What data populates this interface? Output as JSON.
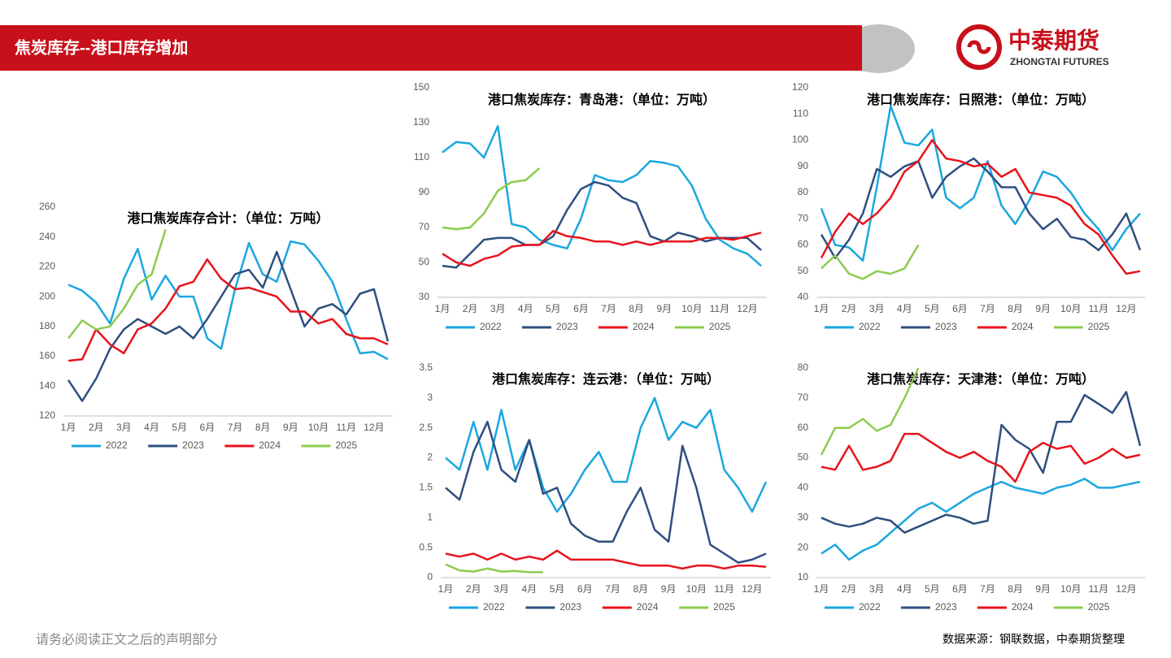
{
  "header": {
    "title": "焦炭库存--港口库存增加"
  },
  "logo": {
    "name": "中泰期货",
    "sub": "ZHONGTAI FUTURES"
  },
  "footer": {
    "disclaimer": "请务必阅读正文之后的声明部分",
    "source": "数据来源：钢联数据，中泰期货整理"
  },
  "chart_data": [
    {
      "type": "line",
      "title": "港口焦炭库存合计：（单位：万吨）",
      "legend": "bottom",
      "categories": [
        "1月",
        null,
        "2月",
        null,
        "3月",
        null,
        "4月",
        null,
        "5月",
        null,
        "6月",
        null,
        "7月",
        null,
        "8月",
        null,
        "9月",
        null,
        "10月",
        null,
        "11月",
        null,
        "12月",
        null
      ],
      "ylim": [
        120,
        260
      ],
      "yticks": [
        120,
        140,
        160,
        180,
        200,
        220,
        240,
        260
      ],
      "series": [
        {
          "name": "2022",
          "color": "#1aa7e0",
          "values": [
            208,
            204,
            196,
            182,
            212,
            232,
            198,
            214,
            200,
            200,
            172,
            165,
            205,
            236,
            215,
            210,
            237,
            235,
            224,
            210,
            185,
            162,
            163,
            158
          ]
        },
        {
          "name": "2023",
          "color": "#2e4f7f",
          "values": [
            144,
            130,
            145,
            165,
            178,
            185,
            180,
            175,
            180,
            172,
            185,
            200,
            215,
            218,
            206,
            230,
            205,
            180,
            192,
            195,
            188,
            202,
            205,
            170
          ]
        },
        {
          "name": "2024",
          "color": "#e8131c",
          "values": [
            157,
            158,
            178,
            168,
            162,
            178,
            182,
            192,
            207,
            210,
            225,
            212,
            205,
            206,
            203,
            200,
            190,
            190,
            182,
            185,
            175,
            172,
            172,
            168
          ]
        },
        {
          "name": "2025",
          "color": "#8ccc4e",
          "values": [
            172,
            184,
            178,
            180,
            192,
            208,
            215,
            245,
            null,
            null,
            null,
            null,
            null,
            null,
            null,
            null,
            null,
            null,
            null,
            null,
            null,
            null,
            null,
            null
          ]
        }
      ]
    },
    {
      "type": "line",
      "title": "港口焦炭库存：青岛港：（单位：万吨）",
      "legend": "bottom",
      "categories": [
        "1月",
        null,
        "2月",
        null,
        "3月",
        null,
        "4月",
        null,
        "5月",
        null,
        "6月",
        null,
        "7月",
        null,
        "8月",
        null,
        "9月",
        null,
        "10月",
        null,
        "11月",
        null,
        "12月",
        null
      ],
      "ylim": [
        30,
        150
      ],
      "yticks": [
        30,
        50,
        70,
        90,
        110,
        130,
        150
      ],
      "series": [
        {
          "name": "2022",
          "color": "#1aa7e0",
          "values": [
            113,
            119,
            118,
            110,
            128,
            72,
            70,
            63,
            60,
            58,
            75,
            100,
            97,
            96,
            100,
            108,
            107,
            105,
            94,
            75,
            63,
            58,
            55,
            48
          ]
        },
        {
          "name": "2023",
          "color": "#2e4f7f",
          "values": [
            48,
            47,
            55,
            63,
            64,
            64,
            60,
            60,
            65,
            80,
            92,
            96,
            94,
            87,
            84,
            65,
            62,
            67,
            65,
            62,
            64,
            64,
            64,
            57
          ]
        },
        {
          "name": "2024",
          "color": "#e8131c",
          "values": [
            55,
            50,
            48,
            52,
            54,
            59,
            60,
            60,
            68,
            65,
            64,
            62,
            62,
            60,
            62,
            60,
            62,
            62,
            62,
            64,
            64,
            63,
            65,
            67
          ]
        },
        {
          "name": "2025",
          "color": "#8ccc4e",
          "values": [
            70,
            69,
            70,
            78,
            91,
            96,
            97,
            104,
            null,
            null,
            null,
            null,
            null,
            null,
            null,
            null,
            null,
            null,
            null,
            null,
            null,
            null,
            null,
            null
          ]
        }
      ]
    },
    {
      "type": "line",
      "title": "港口焦炭库存：日照港：（单位：万吨）",
      "legend": "bottom",
      "categories": [
        "1月",
        null,
        "2月",
        null,
        "3月",
        null,
        "4月",
        null,
        "5月",
        null,
        "6月",
        null,
        "7月",
        null,
        "8月",
        null,
        "9月",
        null,
        "10月",
        null,
        "11月",
        null,
        "12月",
        null
      ],
      "ylim": [
        40,
        120
      ],
      "yticks": [
        40,
        50,
        60,
        70,
        80,
        90,
        100,
        110,
        120
      ],
      "series": [
        {
          "name": "2022",
          "color": "#1aa7e0",
          "values": [
            74,
            60,
            59,
            54,
            82,
            113,
            99,
            98,
            104,
            78,
            74,
            78,
            92,
            75,
            68,
            77,
            88,
            86,
            80,
            72,
            66,
            58,
            66,
            72
          ]
        },
        {
          "name": "2023",
          "color": "#2e4f7f",
          "values": [
            64,
            55,
            62,
            72,
            89,
            86,
            90,
            92,
            78,
            86,
            90,
            93,
            88,
            82,
            82,
            72,
            66,
            70,
            63,
            62,
            58,
            64,
            72,
            58
          ]
        },
        {
          "name": "2024",
          "color": "#e8131c",
          "values": [
            55,
            65,
            72,
            68,
            72,
            78,
            88,
            92,
            100,
            93,
            92,
            90,
            91,
            86,
            89,
            80,
            79,
            78,
            75,
            68,
            64,
            56,
            49,
            50
          ]
        },
        {
          "name": "2025",
          "color": "#8ccc4e",
          "values": [
            51,
            56,
            49,
            47,
            50,
            49,
            51,
            60,
            null,
            null,
            null,
            null,
            null,
            null,
            null,
            null,
            null,
            null,
            null,
            null,
            null,
            null,
            null,
            null
          ]
        }
      ]
    },
    {
      "type": "line",
      "title": "港口焦炭库存：连云港：（单位：万吨）",
      "legend": "bottom",
      "categories": [
        "1月",
        null,
        "2月",
        null,
        "3月",
        null,
        "4月",
        null,
        "5月",
        null,
        "6月",
        null,
        "7月",
        null,
        "8月",
        null,
        "9月",
        null,
        "10月",
        null,
        "11月",
        null,
        "12月",
        null
      ],
      "ylim": [
        0,
        3.5
      ],
      "yticks": [
        0,
        0.5,
        1,
        1.5,
        2,
        2.5,
        3,
        3.5
      ],
      "series": [
        {
          "name": "2022",
          "color": "#1aa7e0",
          "values": [
            2,
            1.8,
            2.6,
            1.8,
            2.8,
            1.8,
            2.3,
            1.5,
            1.1,
            1.4,
            1.8,
            2.1,
            1.6,
            1.6,
            2.5,
            3,
            2.3,
            2.6,
            2.5,
            2.8,
            1.8,
            1.5,
            1.1,
            1.6
          ]
        },
        {
          "name": "2023",
          "color": "#2e4f7f",
          "values": [
            1.5,
            1.3,
            2.1,
            2.6,
            1.8,
            1.6,
            2.3,
            1.4,
            1.5,
            0.9,
            0.7,
            0.6,
            0.6,
            1.1,
            1.5,
            0.8,
            0.6,
            2.2,
            1.5,
            0.55,
            0.4,
            0.25,
            0.3,
            0.4
          ]
        },
        {
          "name": "2024",
          "color": "#e8131c",
          "values": [
            0.4,
            0.35,
            0.4,
            0.3,
            0.4,
            0.3,
            0.35,
            0.3,
            0.45,
            0.3,
            0.3,
            0.3,
            0.3,
            0.25,
            0.2,
            0.2,
            0.2,
            0.15,
            0.2,
            0.2,
            0.15,
            0.2,
            0.2,
            0.18
          ]
        },
        {
          "name": "2025",
          "color": "#8ccc4e",
          "values": [
            0.22,
            0.12,
            0.1,
            0.15,
            0.1,
            0.11,
            0.09,
            0.09,
            null,
            null,
            null,
            null,
            null,
            null,
            null,
            null,
            null,
            null,
            null,
            null,
            null,
            null,
            null,
            null
          ]
        }
      ]
    },
    {
      "type": "line",
      "title": "港口焦炭库存：天津港：（单位：万吨）",
      "legend": "bottom",
      "categories": [
        "1月",
        null,
        "2月",
        null,
        "3月",
        null,
        "4月",
        null,
        "5月",
        null,
        "6月",
        null,
        "7月",
        null,
        "8月",
        null,
        "9月",
        null,
        "10月",
        null,
        "11月",
        null,
        "12月",
        null
      ],
      "ylim": [
        10,
        80
      ],
      "yticks": [
        10,
        20,
        30,
        40,
        50,
        60,
        70,
        80
      ],
      "series": [
        {
          "name": "2022",
          "color": "#1aa7e0",
          "values": [
            18,
            21,
            16,
            19,
            21,
            25,
            29,
            33,
            35,
            32,
            35,
            38,
            40,
            42,
            40,
            39,
            38,
            40,
            41,
            43,
            40,
            40,
            41,
            42
          ]
        },
        {
          "name": "2023",
          "color": "#2e4f7f",
          "values": [
            30,
            28,
            27,
            28,
            30,
            29,
            25,
            27,
            29,
            31,
            30,
            28,
            29,
            61,
            56,
            53,
            45,
            62,
            62,
            71,
            68,
            65,
            72,
            54
          ]
        },
        {
          "name": "2024",
          "color": "#e8131c",
          "values": [
            47,
            46,
            54,
            46,
            47,
            49,
            58,
            58,
            55,
            52,
            50,
            52,
            49,
            47,
            42,
            52,
            55,
            53,
            54,
            48,
            50,
            53,
            50,
            51
          ]
        },
        {
          "name": "2025",
          "color": "#8ccc4e",
          "values": [
            51,
            60,
            60,
            63,
            59,
            61,
            70,
            80,
            null,
            null,
            null,
            null,
            null,
            null,
            null,
            null,
            null,
            null,
            null,
            null,
            null,
            null,
            null,
            null
          ]
        }
      ]
    }
  ]
}
